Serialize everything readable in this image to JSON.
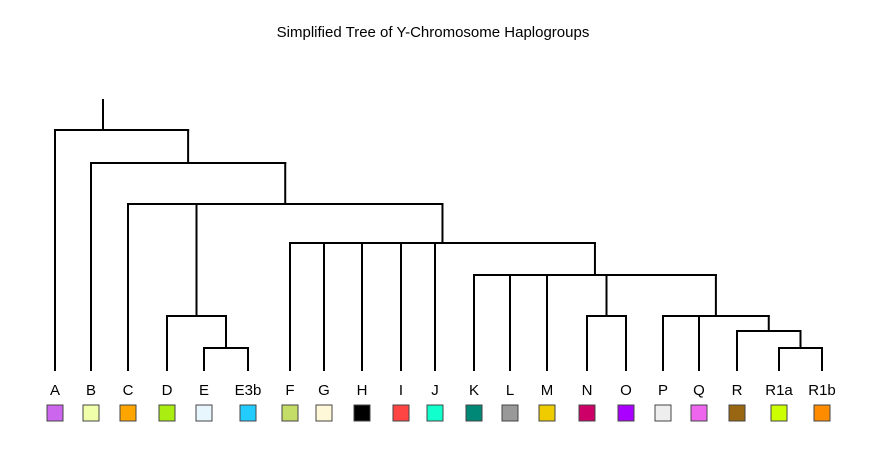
{
  "title": "Simplified Tree of Y-Chromosome Haplogroups",
  "leaves": [
    {
      "label": "A",
      "color": "#cc66ee"
    },
    {
      "label": "B",
      "color": "#f0ffaa"
    },
    {
      "label": "C",
      "color": "#ffa500"
    },
    {
      "label": "D",
      "color": "#aaee11"
    },
    {
      "label": "E",
      "color": "#e6f6fc"
    },
    {
      "label": "E3b",
      "color": "#22ccff"
    },
    {
      "label": "F",
      "color": "#c4dd66"
    },
    {
      "label": "G",
      "color": "#fff8d8"
    },
    {
      "label": "H",
      "color": "#000000"
    },
    {
      "label": "I",
      "color": "#ff4444"
    },
    {
      "label": "J",
      "color": "#11ffcc"
    },
    {
      "label": "K",
      "color": "#008877"
    },
    {
      "label": "L",
      "color": "#999999"
    },
    {
      "label": "M",
      "color": "#eecc00"
    },
    {
      "label": "N",
      "color": "#cc0066"
    },
    {
      "label": "O",
      "color": "#aa00ff"
    },
    {
      "label": "P",
      "color": "#eeeeee"
    },
    {
      "label": "Q",
      "color": "#ee66ee"
    },
    {
      "label": "R",
      "color": "#996611"
    },
    {
      "label": "R1a",
      "color": "#ccff00"
    },
    {
      "label": "R1b",
      "color": "#ff8c00"
    }
  ],
  "tree": {
    "children": [
      "A",
      {
        "children": [
          "B",
          {
            "children": [
              "C",
              {
                "children": [
                  {
                    "children": [
                      "D",
                      {
                        "children": [
                          "E",
                          "E3b"
                        ]
                      }
                    ]
                  }
                ]
              },
              {
                "children": [
                  "F",
                  "G",
                  "H",
                  "I",
                  "J",
                  {
                    "children": [
                      "K",
                      "L",
                      "M",
                      {
                        "children": [
                          "N",
                          "O"
                        ]
                      },
                      {
                        "children": [
                          "P",
                          "Q",
                          {
                            "children": [
                              "R",
                              {
                                "children": [
                                  "R1a",
                                  "R1b"
                                ]
                              }
                            ]
                          }
                        ]
                      }
                    ]
                  }
                ]
              }
            ]
          }
        ]
      }
    ]
  }
}
